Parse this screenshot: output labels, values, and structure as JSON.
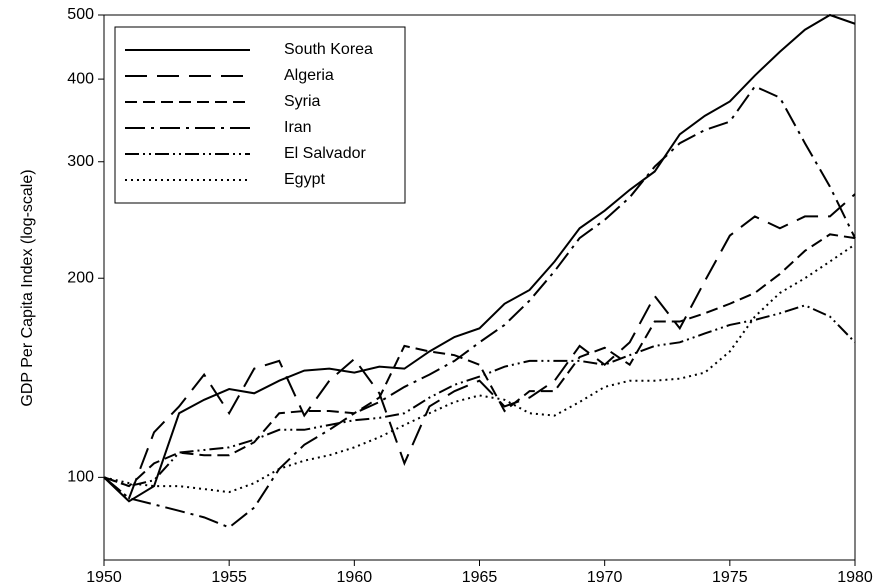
{
  "chart_data": {
    "type": "line",
    "y_label": "GDP Per Capita Index (log-scale)",
    "x": [
      1950,
      1951,
      1952,
      1953,
      1954,
      1955,
      1956,
      1957,
      1958,
      1959,
      1960,
      1961,
      1962,
      1963,
      1964,
      1965,
      1966,
      1967,
      1968,
      1969,
      1970,
      1971,
      1972,
      1973,
      1974,
      1975,
      1976,
      1977,
      1978,
      1979,
      1980
    ],
    "xlim": [
      1950,
      1980
    ],
    "xticks": [
      1950,
      1955,
      1960,
      1965,
      1970,
      1975,
      1980
    ],
    "ylim": [
      75,
      500
    ],
    "yticks": [
      100,
      200,
      300,
      400,
      500
    ],
    "log_y": true,
    "legend": "upper left",
    "series": [
      {
        "name": "South Korea",
        "color": "#000000",
        "dash": "none",
        "values": [
          100,
          92,
          97,
          125,
          131,
          136,
          134,
          140,
          145,
          146,
          144,
          147,
          146,
          155,
          163,
          168,
          183,
          192,
          212,
          238,
          253,
          272,
          290,
          330,
          352,
          370,
          405,
          440,
          475,
          500,
          485
        ]
      },
      {
        "name": "Algeria",
        "color": "#000000",
        "dash": "22 10",
        "values": [
          100,
          93,
          117,
          128,
          143,
          125,
          146,
          150,
          124,
          140,
          151,
          134,
          105,
          128,
          135,
          140,
          128,
          132,
          140,
          158,
          148,
          160,
          188,
          168,
          198,
          232,
          248,
          238,
          248,
          248,
          268
        ]
      },
      {
        "name": "Syria",
        "color": "#000000",
        "dash": "12 6",
        "values": [
          100,
          97,
          105,
          109,
          108,
          108,
          113,
          125,
          126,
          126,
          125,
          132,
          158,
          155,
          153,
          148,
          126,
          135,
          135,
          152,
          157,
          148,
          172,
          172,
          177,
          183,
          190,
          203,
          220,
          233,
          230
        ]
      },
      {
        "name": "Iran",
        "color": "#000000",
        "dash": "20 6 3 6",
        "values": [
          100,
          93,
          91,
          89,
          87,
          84,
          90,
          103,
          112,
          118,
          125,
          130,
          137,
          143,
          150,
          160,
          170,
          185,
          205,
          230,
          245,
          265,
          295,
          320,
          335,
          345,
          390,
          375,
          320,
          275,
          230
        ]
      },
      {
        "name": "El Salvador",
        "color": "#000000",
        "dash": "14 4 2 4 2 4",
        "values": [
          100,
          97,
          99,
          109,
          110,
          111,
          114,
          118,
          118,
          120,
          122,
          123,
          125,
          132,
          138,
          142,
          147,
          150,
          150,
          150,
          148,
          153,
          158,
          160,
          165,
          170,
          173,
          177,
          182,
          175,
          160
        ]
      },
      {
        "name": "Egypt",
        "color": "#000000",
        "dash": "2 4",
        "values": [
          100,
          98,
          97,
          97,
          96,
          95,
          98,
          103,
          106,
          108,
          111,
          115,
          120,
          125,
          130,
          133,
          131,
          125,
          124,
          130,
          137,
          140,
          140,
          141,
          144,
          155,
          175,
          190,
          200,
          212,
          225
        ]
      }
    ]
  }
}
